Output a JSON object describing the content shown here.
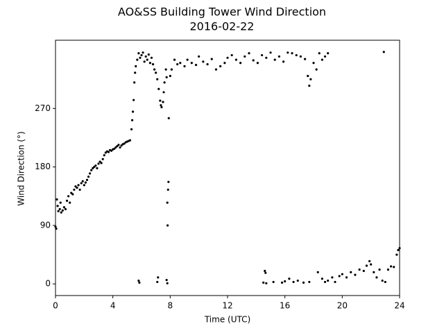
{
  "chart_data": {
    "type": "scatter",
    "title": "AO&SS Building Tower Wind Direction",
    "subtitle": "2016-02-22",
    "x_label": "Time (UTC)",
    "y_label": "Wind Direction (°)",
    "color": "#000000",
    "xlim": [
      0,
      24
    ],
    "xticks": [
      0,
      4,
      8,
      12,
      16,
      20,
      24
    ],
    "ylim": [
      -17.9,
      375
    ],
    "yticks": [
      0,
      90,
      180,
      270
    ],
    "x": [
      0.0,
      0.05,
      0.1,
      0.15,
      0.2,
      0.3,
      0.35,
      0.4,
      0.5,
      0.6,
      0.7,
      0.8,
      0.9,
      1.0,
      1.1,
      1.2,
      1.3,
      1.4,
      1.5,
      1.6,
      1.7,
      1.8,
      1.9,
      2.0,
      2.1,
      2.2,
      2.3,
      2.4,
      2.5,
      2.6,
      2.7,
      2.8,
      2.9,
      3.0,
      3.1,
      3.2,
      3.3,
      3.4,
      3.5,
      3.6,
      3.7,
      3.8,
      3.9,
      4.0,
      4.1,
      4.2,
      4.3,
      4.4,
      4.5,
      4.6,
      4.7,
      4.8,
      4.9,
      5.0,
      5.1,
      5.2,
      5.3,
      5.35,
      5.4,
      5.45,
      5.5,
      5.55,
      5.6,
      5.7,
      5.8,
      5.9,
      6.0,
      6.1,
      6.2,
      6.3,
      6.4,
      6.5,
      6.6,
      6.7,
      6.8,
      6.9,
      7.0,
      7.1,
      7.2,
      7.3,
      7.35,
      7.4,
      7.5,
      7.55,
      7.6,
      7.7,
      7.75,
      7.8,
      7.82,
      7.85,
      7.88,
      7.9,
      8.0,
      8.1,
      8.3,
      8.5,
      8.7,
      9.0,
      9.2,
      9.5,
      9.8,
      10.0,
      10.3,
      10.6,
      10.9,
      11.2,
      11.5,
      11.8,
      12.0,
      12.3,
      12.6,
      12.9,
      13.2,
      13.5,
      13.8,
      14.1,
      14.4,
      14.7,
      15.0,
      15.3,
      15.6,
      15.9,
      16.2,
      16.5,
      16.8,
      17.1,
      17.4,
      17.6,
      17.7,
      17.8,
      18.0,
      18.2,
      18.4,
      18.6,
      18.8,
      19.0,
      22.9,
      5.8,
      5.85,
      7.1,
      7.15,
      7.75,
      7.8,
      14.5,
      14.6,
      14.65,
      14.7,
      15.2,
      15.8,
      16.0,
      16.3,
      16.6,
      16.9,
      17.3,
      17.7,
      18.3,
      18.6,
      18.8,
      19.0,
      19.3,
      19.5,
      19.8,
      20.0,
      20.3,
      20.6,
      20.9,
      21.2,
      21.5,
      21.7,
      21.9,
      22.0,
      22.2,
      22.4,
      22.6,
      22.8,
      23.0,
      23.2,
      23.4,
      23.6,
      23.8,
      23.9,
      24.0
    ],
    "values": [
      88,
      85,
      130,
      120,
      112,
      115,
      125,
      110,
      113,
      118,
      115,
      128,
      135,
      125,
      140,
      138,
      145,
      150,
      148,
      152,
      145,
      155,
      158,
      152,
      156,
      160,
      165,
      170,
      175,
      178,
      180,
      182,
      178,
      185,
      188,
      186,
      192,
      198,
      202,
      204,
      203,
      206,
      205,
      207,
      208,
      210,
      212,
      214,
      210,
      213,
      215,
      216,
      218,
      219,
      220,
      221,
      238,
      252,
      265,
      283,
      310,
      325,
      335,
      345,
      355,
      348,
      352,
      356,
      342,
      350,
      345,
      353,
      340,
      348,
      338,
      330,
      325,
      315,
      300,
      282,
      275,
      272,
      280,
      295,
      310,
      330,
      318,
      125,
      90,
      145,
      157,
      255,
      320,
      330,
      345,
      338,
      340,
      335,
      345,
      340,
      337,
      350,
      342,
      338,
      346,
      330,
      335,
      340,
      348,
      352,
      345,
      340,
      350,
      355,
      344,
      340,
      352,
      348,
      356,
      345,
      350,
      342,
      356,
      355,
      352,
      350,
      346,
      320,
      305,
      315,
      340,
      330,
      355,
      345,
      350,
      355,
      357,
      5,
      2,
      3,
      10,
      6,
      1,
      2,
      20,
      17,
      1,
      3,
      2,
      4,
      8,
      3,
      5,
      2,
      3,
      18,
      8,
      3,
      5,
      10,
      3,
      12,
      15,
      10,
      18,
      14,
      22,
      20,
      28,
      35,
      30,
      18,
      10,
      22,
      5,
      3,
      22,
      27,
      26,
      45,
      52,
      55
    ]
  }
}
